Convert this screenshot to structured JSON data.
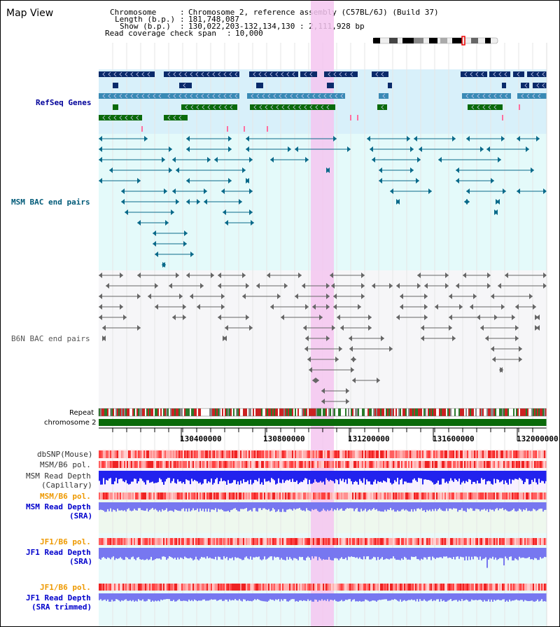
{
  "view_title": "Map View",
  "header": {
    "chromosome_label": "Chromosome",
    "chromosome_value": "Chromosome 2, reference assembly (C57BL/6J) (Build 37)",
    "length_label": "Length (b.p.)",
    "length_value": "181,748,087",
    "show_label": "Show (b.p.)",
    "show_value": "130,022,203-132,134,130 : 2,111,928 bp",
    "coverage_label": "Read coverage check span",
    "coverage_value": "10,000"
  },
  "tracks": {
    "refseq": "RefSeq Genes",
    "msm_bac": "MSM BAC end pairs",
    "b6n_bac": "B6N BAC end pairs",
    "repeat": "Repeat",
    "chromosome": "chromosome 2",
    "dbsnp": "dbSNP(Mouse)",
    "msm_b6_pol_1": "MSM/B6 pol.",
    "msm_depth_cap_1": "MSM Read Depth",
    "msm_depth_cap_2": "(Capillary)",
    "msm_b6_pol_2": "MSM/B6 pol.",
    "msm_depth_sra_1": "MSM Read Depth",
    "msm_depth_sra_2": "(SRA)",
    "jf1_pol_1": "JF1/B6 pol.",
    "jf1_depth_sra_1": "JF1 Read Depth",
    "jf1_depth_sra_2": "(SRA)",
    "jf1_pol_2": "JF1/B6 pol.",
    "jf1_trim_1": "JF1 Read Depth",
    "jf1_trim_2": "(SRA trimmed)"
  },
  "axis_ticks": [
    "130400000",
    "130800000",
    "131200000",
    "131600000",
    "132000000"
  ],
  "colors": {
    "gene_dark": "#0a2a6a",
    "gene_mid": "#3a8ab5",
    "gene_green": "#0a6a0a",
    "msm_bac": "#0a6a8a",
    "b6n_bac": "#666666",
    "highlight": "#f4c6f0",
    "chromosome_bar": "#0a6a0a",
    "snp_red": "#ee2222",
    "depth_blue": "#2222ee",
    "depth_light": "#7777f0"
  }
}
